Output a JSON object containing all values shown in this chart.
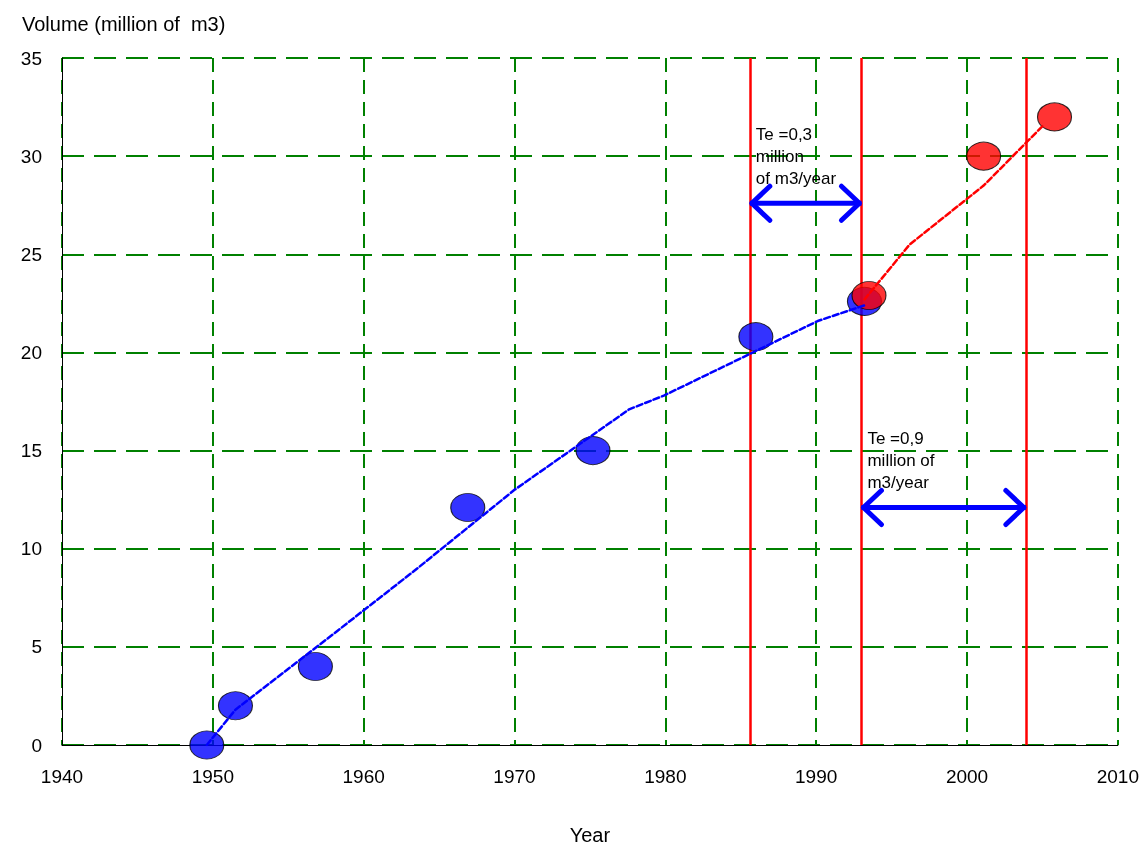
{
  "chart_data": {
    "type": "scatter",
    "xlabel": "Year",
    "ylabel": "Volume (million of  m3)",
    "xlim": [
      1940,
      2010
    ],
    "xticks": [
      1940,
      1950,
      1960,
      1970,
      1980,
      1990,
      2000,
      2010
    ],
    "ylim": [
      0,
      35
    ],
    "yticks": [
      0,
      5,
      10,
      15,
      20,
      25,
      30,
      35
    ],
    "grid": true,
    "marker": "circle",
    "series": [
      {
        "type": "line",
        "color": "#0000ff",
        "line_style": "dashed",
        "marker": "none",
        "x": [
          1949.6,
          1951.5,
          1958.4,
          1963.4,
          1970.0,
          1977.6,
          1979.9,
          1990.1,
          1993.2
        ],
        "values": [
          0,
          1.8,
          5.9,
          8.9,
          13.0,
          17.1,
          17.8,
          21.6,
          22.4
        ]
      },
      {
        "type": "line",
        "color": "#ff0000",
        "line_style": "dashed",
        "marker": "none",
        "x": [
          1993.2,
          1996.2,
          2001.1,
          2005.1
        ],
        "values": [
          22.7,
          25.5,
          28.5,
          31.6
        ]
      },
      {
        "color": "#0000ff",
        "x": [
          1949.6,
          1951.5,
          1956.8,
          1966.9,
          1975.2,
          1986.0,
          1993.2
        ],
        "values": [
          0,
          2.0,
          4.0,
          12.1,
          15.0,
          20.8,
          22.6
        ]
      },
      {
        "color": "#ff0000",
        "x": [
          1993.5,
          2001.1,
          2005.8
        ],
        "values": [
          22.9,
          30.0,
          32.0
        ]
      }
    ],
    "ref_lines": [
      {
        "axis": "x",
        "value": 1985.6,
        "color": "#ff0000"
      },
      {
        "axis": "x",
        "value": 1993.0,
        "color": "#ff0000"
      },
      {
        "axis": "x",
        "value": 2003.9,
        "color": "#ff0000"
      }
    ],
    "annotations": [
      {
        "text": "Te =0,3\nmillion\nof m3/year",
        "x": 1985.6,
        "y": 27.6
      },
      {
        "text": "Te =0,9\nmillion of\nm3/year",
        "x": 1993.0,
        "y": 12.1
      }
    ]
  }
}
